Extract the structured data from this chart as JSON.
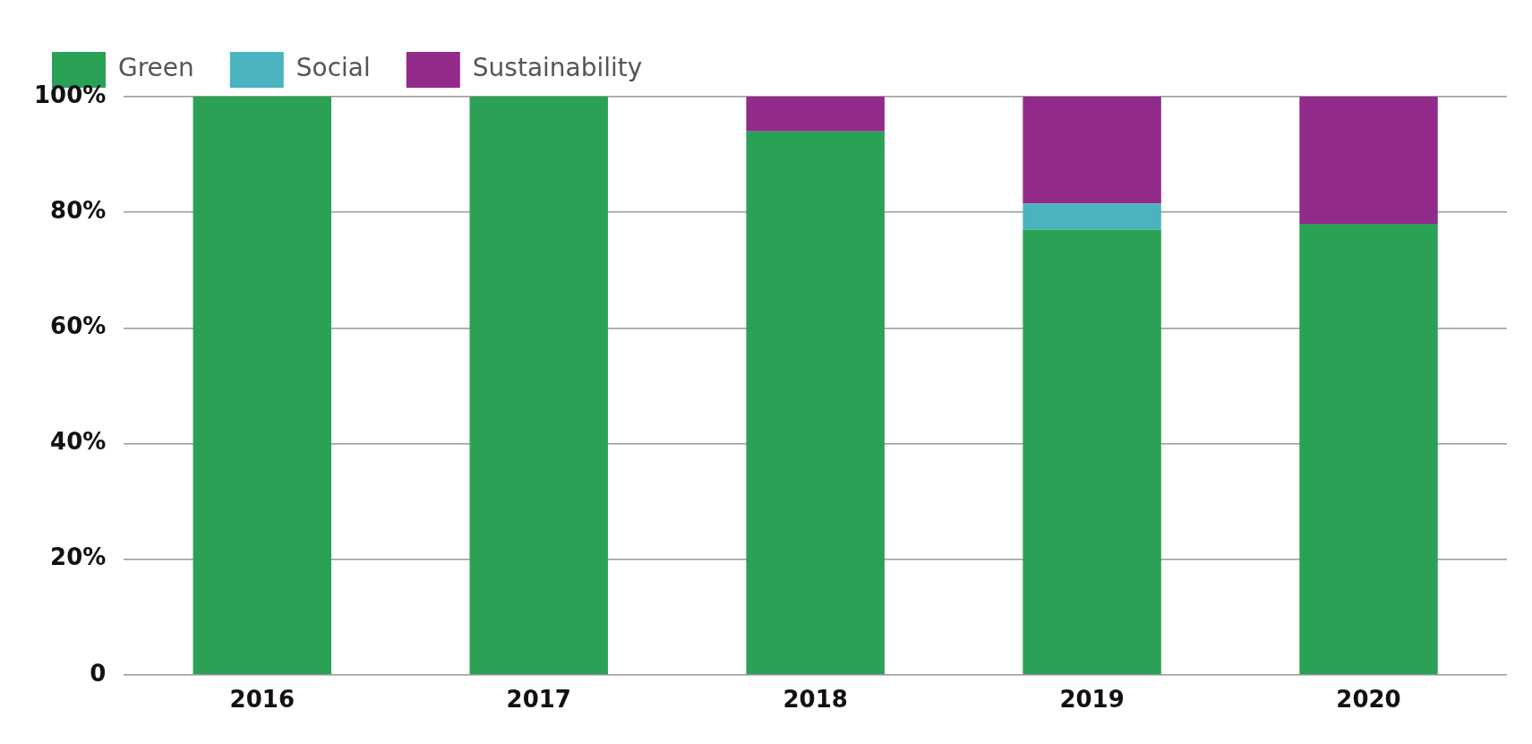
{
  "chart_data": {
    "type": "bar",
    "stacked": true,
    "categories": [
      "2016",
      "2017",
      "2018",
      "2019",
      "2020"
    ],
    "series": [
      {
        "name": "Green",
        "color": "#2ba155",
        "values": [
          100,
          100,
          94,
          77,
          78
        ]
      },
      {
        "name": "Social",
        "color": "#4bb3c0",
        "values": [
          0,
          0,
          0,
          4.5,
          0
        ]
      },
      {
        "name": "Sustainability",
        "color": "#922a8a",
        "values": [
          0,
          0,
          6,
          18.5,
          22
        ]
      }
    ],
    "ylim": [
      0,
      100
    ],
    "yticks": [
      {
        "value": 0,
        "label": "0"
      },
      {
        "value": 20,
        "label": "20%"
      },
      {
        "value": 40,
        "label": "40%"
      },
      {
        "value": 60,
        "label": "60%"
      },
      {
        "value": 80,
        "label": "80%"
      },
      {
        "value": 100,
        "label": "100%"
      }
    ],
    "grid": "y",
    "legend": "top left"
  }
}
